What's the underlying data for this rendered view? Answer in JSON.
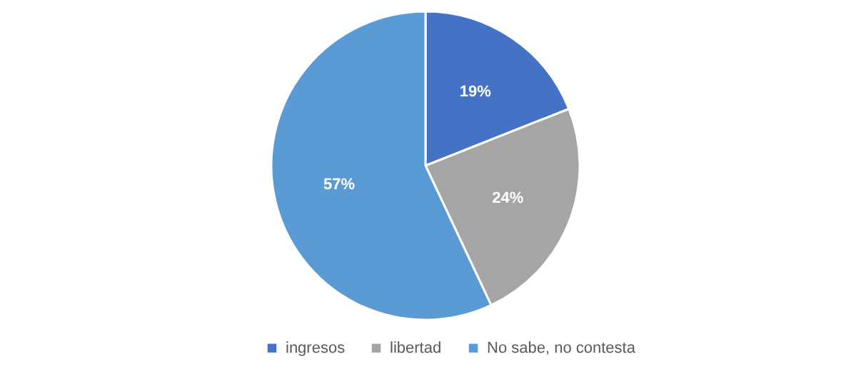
{
  "chart_data": {
    "type": "pie",
    "categories": [
      "ingresos",
      "libertad",
      "No sabe, no contesta"
    ],
    "values": [
      19,
      24,
      57
    ],
    "value_labels": [
      "19%",
      "24%",
      "57%"
    ],
    "colors": [
      "#4472c4",
      "#a5a5a5",
      "#5b9bd5"
    ],
    "legend": "bottom"
  }
}
